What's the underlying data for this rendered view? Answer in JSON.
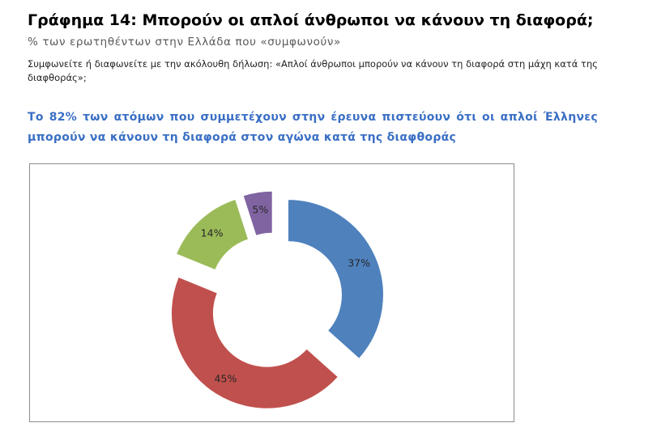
{
  "page": {
    "title": "Γράφημα 14: Μπορούν οι απλοί άνθρωποι να κάνουν τη διαφορά;",
    "subtitle": "% των ερωτηθέντων στην Ελλάδα που «συμφωνούν»",
    "question": "Συμφωνείτε ή διαφωνείτε με την ακόλουθη δήλωση: «Απλοί άνθρωποι μπορούν να κάνουν τη διαφορά στη μάχη κατά της διαφθοράς»;",
    "highlight": "Το 82% των ατόμων που συμμετέχουν στην έρευνα πιστεύουν ότι οι απλοί Έλληνες μπορούν να κάνουν τη διαφορά στον αγώνα κατά της διαφθοράς"
  },
  "chart_data": {
    "type": "pie",
    "variant": "exploded-donut",
    "slices": [
      {
        "label": "37%",
        "value": 37,
        "color": "#4f81bd"
      },
      {
        "label": "45%",
        "value": 45,
        "color": "#c0504d"
      },
      {
        "label": "14%",
        "value": 14,
        "color": "#9bbb59"
      },
      {
        "label": "5%",
        "value": 5,
        "color": "#8064a2"
      }
    ],
    "legend": "none"
  }
}
